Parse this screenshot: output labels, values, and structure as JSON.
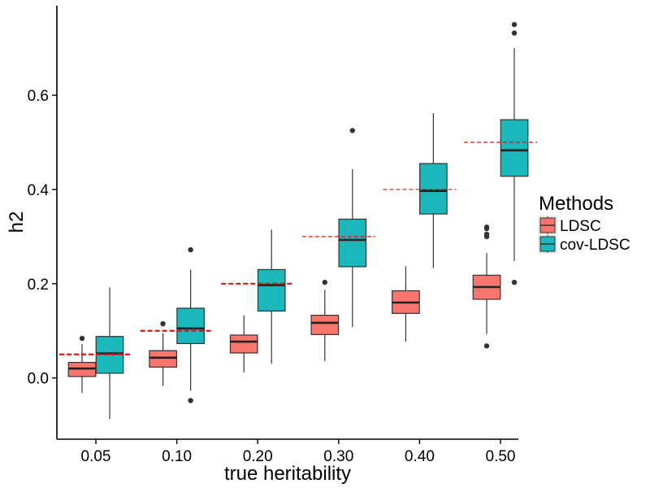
{
  "chart_data": {
    "type": "box",
    "xlabel": "true heritability",
    "ylabel": "h2",
    "categories": [
      "0.05",
      "0.10",
      "0.20",
      "0.30",
      "0.40",
      "0.50"
    ],
    "ylim": [
      -0.13,
      0.79
    ],
    "y_ticks": [
      0.0,
      0.2,
      0.4,
      0.6
    ],
    "y_tick_labels": [
      "0.0",
      "0.2",
      "0.4",
      "0.6"
    ],
    "grid": false,
    "legend": {
      "title": "Methods",
      "position": "right"
    },
    "reference_lines": [
      0.05,
      0.1,
      0.2,
      0.3,
      0.4,
      0.5
    ],
    "reference_line_color": "#e3120b",
    "series": [
      {
        "name": "LDSC",
        "color": "#f8766d",
        "boxes": [
          {
            "whisker_low": -0.032,
            "q1": 0.003,
            "median": 0.02,
            "q3": 0.033,
            "whisker_high": 0.072,
            "outliers": [
              0.084
            ]
          },
          {
            "whisker_low": -0.017,
            "q1": 0.023,
            "median": 0.043,
            "q3": 0.058,
            "whisker_high": 0.095,
            "outliers": [
              0.115
            ]
          },
          {
            "whisker_low": 0.012,
            "q1": 0.053,
            "median": 0.077,
            "q3": 0.091,
            "whisker_high": 0.133,
            "outliers": []
          },
          {
            "whisker_low": 0.036,
            "q1": 0.092,
            "median": 0.117,
            "q3": 0.133,
            "whisker_high": 0.187,
            "outliers": [
              0.203
            ]
          },
          {
            "whisker_low": 0.077,
            "q1": 0.137,
            "median": 0.16,
            "q3": 0.185,
            "whisker_high": 0.237,
            "outliers": []
          },
          {
            "whisker_low": 0.093,
            "q1": 0.167,
            "median": 0.193,
            "q3": 0.218,
            "whisker_high": 0.265,
            "outliers": [
              0.068,
              0.3,
              0.305,
              0.317,
              0.32
            ]
          }
        ]
      },
      {
        "name": "cov-LDSC",
        "color": "#1ab7bb",
        "boxes": [
          {
            "whisker_low": -0.087,
            "q1": 0.01,
            "median": 0.052,
            "q3": 0.088,
            "whisker_high": 0.192,
            "outliers": []
          },
          {
            "whisker_low": -0.027,
            "q1": 0.073,
            "median": 0.105,
            "q3": 0.148,
            "whisker_high": 0.23,
            "outliers": [
              -0.048,
              0.272
            ]
          },
          {
            "whisker_low": 0.03,
            "q1": 0.142,
            "median": 0.197,
            "q3": 0.23,
            "whisker_high": 0.315,
            "outliers": []
          },
          {
            "whisker_low": 0.108,
            "q1": 0.236,
            "median": 0.293,
            "q3": 0.337,
            "whisker_high": 0.443,
            "outliers": [
              0.525
            ]
          },
          {
            "whisker_low": 0.233,
            "q1": 0.348,
            "median": 0.397,
            "q3": 0.455,
            "whisker_high": 0.562,
            "outliers": []
          },
          {
            "whisker_low": 0.248,
            "q1": 0.428,
            "median": 0.483,
            "q3": 0.548,
            "whisker_high": 0.7,
            "outliers": [
              0.203,
              0.732,
              0.75
            ]
          }
        ]
      }
    ]
  }
}
